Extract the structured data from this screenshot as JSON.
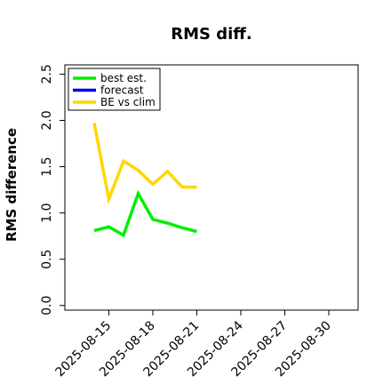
{
  "chart_data": {
    "type": "line",
    "title": "RMS diff.",
    "xlabel": "",
    "ylabel": "RMS difference",
    "ylim": [
      -0.05,
      2.6
    ],
    "yticks": [
      0.0,
      0.5,
      1.0,
      1.5,
      2.0,
      2.5
    ],
    "ytick_labels": [
      "0.0",
      "0.5",
      "1.0",
      "1.5",
      "2.0",
      "2.5"
    ],
    "xlim": [
      "2025-08-12",
      "2025-09-01"
    ],
    "xticks": [
      "2025-08-15",
      "2025-08-18",
      "2025-08-21",
      "2025-08-24",
      "2025-08-27",
      "2025-08-30"
    ],
    "xtick_labels": [
      "2025-08-15",
      "2025-08-18",
      "2025-08-21",
      "2025-08-24",
      "2025-08-27",
      "2025-08-30"
    ],
    "highlight_xtick": "2025-08-21",
    "highlight_color": "#228B22",
    "grid": false,
    "legend_position": "top-left",
    "series": [
      {
        "name": "best est.",
        "color": "#00ee00",
        "x": [
          "2025-08-14",
          "2025-08-15",
          "2025-08-16",
          "2025-08-17",
          "2025-08-18",
          "2025-08-19",
          "2025-08-20",
          "2025-08-21"
        ],
        "values": [
          0.81,
          0.85,
          0.76,
          1.21,
          0.93,
          0.89,
          0.84,
          0.8
        ]
      },
      {
        "name": "forecast",
        "color": "#0000ee",
        "x": [],
        "values": []
      },
      {
        "name": "BE vs clim",
        "color": "#ffd700",
        "x": [
          "2025-08-14",
          "2025-08-15",
          "2025-08-16",
          "2025-08-17",
          "2025-08-18",
          "2025-08-19",
          "2025-08-20",
          "2025-08-21"
        ],
        "values": [
          1.97,
          1.15,
          1.56,
          1.46,
          1.31,
          1.45,
          1.28,
          1.28
        ]
      }
    ]
  }
}
